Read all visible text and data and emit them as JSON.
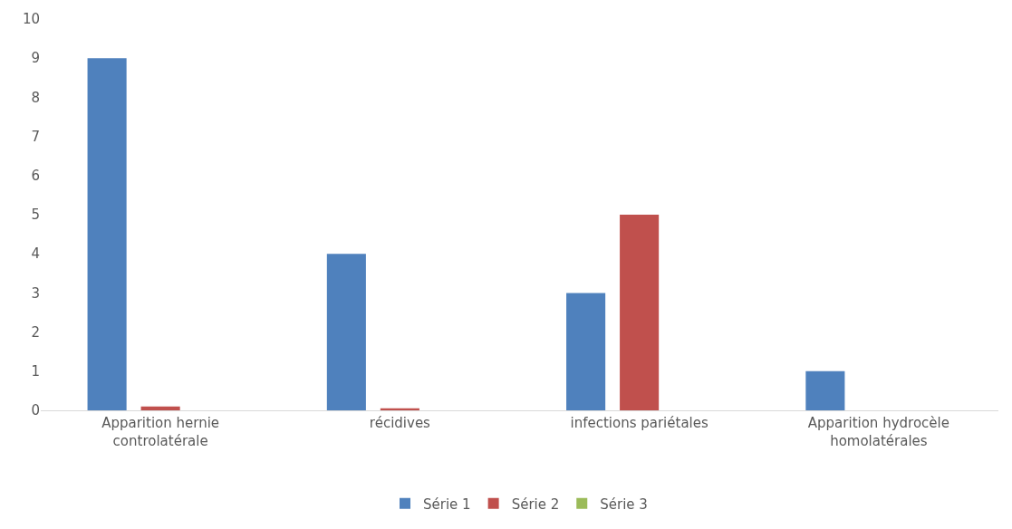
{
  "chart_data": {
    "type": "bar",
    "categories": [
      "Apparition hernie controlatérale",
      "récidives",
      "infections pariétales",
      "Apparition hydrocèle homolatérales"
    ],
    "series": [
      {
        "name": "Série 1",
        "color": "#4f81bd",
        "values": [
          9,
          4,
          3,
          1
        ]
      },
      {
        "name": "Série 2",
        "color": "#c0504d",
        "values": [
          0.1,
          0.05,
          5,
          null
        ]
      },
      {
        "name": "Série 3",
        "color": "#9bbb59",
        "values": [
          null,
          null,
          null,
          null
        ]
      }
    ],
    "ylim": [
      0,
      10
    ],
    "yticks": [
      0,
      1,
      2,
      3,
      4,
      5,
      6,
      7,
      8,
      9,
      10
    ],
    "grid": false,
    "legend": "bottom"
  }
}
